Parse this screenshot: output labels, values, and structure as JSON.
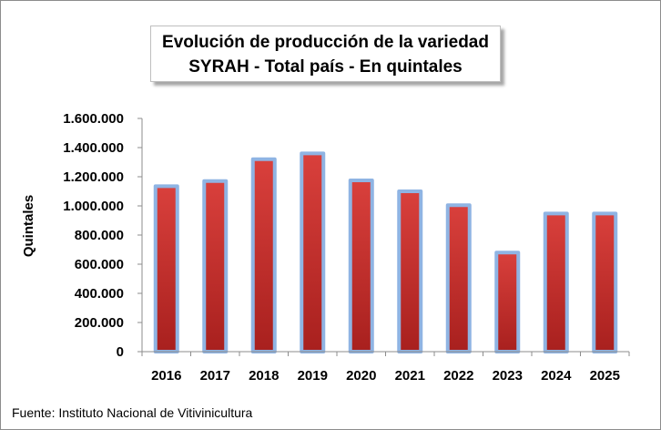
{
  "chart_data": {
    "type": "bar",
    "title": "Evolución  de producción  de la variedad",
    "subtitle": "SYRAH - Total país - En quintales",
    "ylabel": "Quintales",
    "xlabel": "",
    "categories": [
      "2016",
      "2017",
      "2018",
      "2019",
      "2020",
      "2021",
      "2022",
      "2023",
      "2024",
      "2025"
    ],
    "values": [
      1135000,
      1170000,
      1320000,
      1360000,
      1175000,
      1100000,
      1005000,
      680000,
      948000,
      948000
    ],
    "ylim": [
      0,
      1600000
    ],
    "yticks": [
      "0",
      "200.000",
      "400.000",
      "600.000",
      "800.000",
      "1.000.000",
      "1.200.000",
      "1.400.000",
      "1.600.000"
    ],
    "ytick_values": [
      0,
      200000,
      400000,
      600000,
      800000,
      1000000,
      1200000,
      1400000,
      1600000
    ],
    "grid": false,
    "legend": "none",
    "colors": {
      "bar_fill_top": "#d9403c",
      "bar_fill_bottom": "#a8201e",
      "bar_outline": "#8fb4e3",
      "axis": "#8c8c8c"
    }
  },
  "footer": {
    "source": "Fuente:  Instituto Nacional de Vitivinicultura"
  }
}
